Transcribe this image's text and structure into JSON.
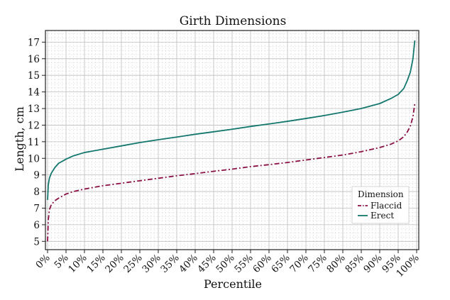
{
  "chart_data": {
    "type": "line",
    "title": "Girth Dimensions",
    "xlabel": "Percentile",
    "ylabel": "Length, cm",
    "xlim": [
      0,
      100
    ],
    "ylim": [
      4.5,
      17.7
    ],
    "x_ticks": [
      "0%",
      "5%",
      "10%",
      "15%",
      "20%",
      "25%",
      "30%",
      "35%",
      "40%",
      "45%",
      "50%",
      "55%",
      "60%",
      "65%",
      "70%",
      "75%",
      "80%",
      "85%",
      "90%",
      "95%",
      "100%"
    ],
    "y_ticks": [
      5,
      6,
      7,
      8,
      9,
      10,
      11,
      12,
      13,
      14,
      15,
      16,
      17
    ],
    "grid": true,
    "legend": {
      "title": "Dimension",
      "placement": "lower-right"
    },
    "series": [
      {
        "name": "Flaccid",
        "color": "#8b1046",
        "style": "dashdot",
        "x": [
          0,
          0.2,
          0.5,
          1,
          2,
          3,
          5,
          7,
          10,
          15,
          20,
          25,
          30,
          35,
          40,
          45,
          50,
          55,
          60,
          65,
          70,
          75,
          80,
          85,
          90,
          93,
          95,
          96.5,
          97.5,
          98.3,
          99,
          99.5
        ],
        "y": [
          5.0,
          6.3,
          6.9,
          7.2,
          7.45,
          7.6,
          7.85,
          8.0,
          8.15,
          8.35,
          8.5,
          8.65,
          8.8,
          8.95,
          9.08,
          9.22,
          9.35,
          9.5,
          9.62,
          9.75,
          9.9,
          10.05,
          10.2,
          10.4,
          10.65,
          10.85,
          11.05,
          11.3,
          11.6,
          11.95,
          12.5,
          13.3
        ]
      },
      {
        "name": "Erect",
        "color": "#14776d",
        "style": "solid",
        "x": [
          0,
          0.2,
          0.5,
          1,
          2,
          3,
          5,
          7,
          10,
          15,
          20,
          25,
          30,
          35,
          40,
          45,
          50,
          55,
          60,
          65,
          70,
          75,
          80,
          85,
          90,
          93,
          95,
          96.5,
          97.5,
          98.3,
          99,
          99.5
        ],
        "y": [
          7.5,
          8.4,
          8.8,
          9.1,
          9.45,
          9.7,
          9.95,
          10.15,
          10.35,
          10.55,
          10.75,
          10.95,
          11.12,
          11.28,
          11.45,
          11.6,
          11.75,
          11.92,
          12.07,
          12.23,
          12.4,
          12.58,
          12.78,
          13.0,
          13.3,
          13.6,
          13.85,
          14.2,
          14.7,
          15.2,
          16.0,
          17.1
        ]
      }
    ]
  }
}
